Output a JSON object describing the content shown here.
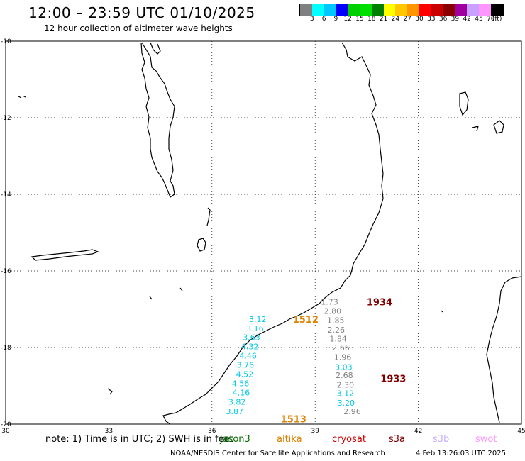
{
  "header": {
    "title": "12:00 – 23:59 UTC 01/10/2025",
    "subtitle": "12 hour collection of altimeter wave heights"
  },
  "colorbar": {
    "colors": [
      "#808080",
      "#00ffff",
      "#00c8ff",
      "#0000ff",
      "#00d000",
      "#00e000",
      "#008000",
      "#ffff00",
      "#ffc800",
      "#ff9600",
      "#ff0000",
      "#c80000",
      "#8b0000",
      "#a000a0",
      "#c8a0ff",
      "#ff96ff",
      "#000000"
    ],
    "labels": [
      "3",
      "6",
      "9",
      "12",
      "15",
      "18",
      "21",
      "24",
      "27",
      "30",
      "33",
      "36",
      "39",
      "42",
      "45",
      "70",
      "(ft)"
    ]
  },
  "map": {
    "x_ticks": [
      "30",
      "33",
      "36",
      "39",
      "42",
      "45"
    ],
    "y_ticks": [
      "-10",
      "-12",
      "-14",
      "-16",
      "-18",
      "-20"
    ],
    "lon_range": [
      30,
      45
    ],
    "lat_range": [
      -20,
      -10
    ],
    "passes": [
      {
        "label": "1934",
        "color": "#800000",
        "lon": 40.5,
        "lat": -16.9
      },
      {
        "label": "1512",
        "color": "#e08000",
        "lon": 38.35,
        "lat": -17.35
      },
      {
        "label": "1933",
        "color": "#800000",
        "lon": 40.9,
        "lat": -18.9
      },
      {
        "label": "1513",
        "color": "#e08000",
        "lon": 38.0,
        "lat": -19.95
      }
    ],
    "observations": [
      {
        "value": "1.73",
        "color": "#808080",
        "lon": 39.42,
        "lat": -16.88
      },
      {
        "value": "2.80",
        "color": "#808080",
        "lon": 39.51,
        "lat": -17.12
      },
      {
        "value": "1.85",
        "color": "#808080",
        "lon": 39.6,
        "lat": -17.36
      },
      {
        "value": "2.26",
        "color": "#808080",
        "lon": 39.61,
        "lat": -17.61
      },
      {
        "value": "1.84",
        "color": "#808080",
        "lon": 39.67,
        "lat": -17.84
      },
      {
        "value": "2.66",
        "color": "#808080",
        "lon": 39.75,
        "lat": -18.07
      },
      {
        "value": "1.96",
        "color": "#808080",
        "lon": 39.8,
        "lat": -18.32
      },
      {
        "value": "2.68",
        "color": "#808080",
        "lon": 39.85,
        "lat": -18.8
      },
      {
        "value": "2.30",
        "color": "#808080",
        "lon": 39.88,
        "lat": -19.05
      },
      {
        "value": "2.96",
        "color": "#808080",
        "lon": 40.08,
        "lat": -19.74
      },
      {
        "value": "3.12",
        "color": "#00c8e6",
        "lon": 37.33,
        "lat": -17.33
      },
      {
        "value": "3.16",
        "color": "#00c8e6",
        "lon": 37.25,
        "lat": -17.57
      },
      {
        "value": "3.63",
        "color": "#00c8e6",
        "lon": 37.15,
        "lat": -17.81
      },
      {
        "value": "4.32",
        "color": "#00c8e6",
        "lon": 37.1,
        "lat": -18.05
      },
      {
        "value": "4.46",
        "color": "#00c8e6",
        "lon": 37.05,
        "lat": -18.29
      },
      {
        "value": "3.76",
        "color": "#00c8e6",
        "lon": 36.97,
        "lat": -18.53
      },
      {
        "value": "4.52",
        "color": "#00c8e6",
        "lon": 36.95,
        "lat": -18.77
      },
      {
        "value": "4.56",
        "color": "#00c8e6",
        "lon": 36.83,
        "lat": -19.01
      },
      {
        "value": "4.16",
        "color": "#00c8e6",
        "lon": 36.85,
        "lat": -19.25
      },
      {
        "value": "3.82",
        "color": "#00c8e6",
        "lon": 36.73,
        "lat": -19.49
      },
      {
        "value": "3.87",
        "color": "#00c8e6",
        "lon": 36.66,
        "lat": -19.74
      },
      {
        "value": "3.03",
        "color": "#00c8e6",
        "lon": 39.83,
        "lat": -18.58
      },
      {
        "value": "3.12",
        "color": "#00c8e6",
        "lon": 39.88,
        "lat": -19.27
      },
      {
        "value": "3.20",
        "color": "#00c8e6",
        "lon": 39.9,
        "lat": -19.52
      }
    ]
  },
  "footer": {
    "note": "note: 1) Time is in UTC; 2) SWH is in feet",
    "legend": [
      {
        "label": "jason3",
        "color": "#007000"
      },
      {
        "label": "altika",
        "color": "#e08000"
      },
      {
        "label": "cryosat",
        "color": "#d00000"
      },
      {
        "label": "s3a",
        "color": "#800000"
      },
      {
        "label": "s3b",
        "color": "#c8b0ff"
      },
      {
        "label": "swot",
        "color": "#ff96ff"
      }
    ],
    "credit": "NOAA/NESDIS Center for Satellite Applications and Research",
    "timestamp": "4 Feb 13:26:03 UTC 2025"
  }
}
